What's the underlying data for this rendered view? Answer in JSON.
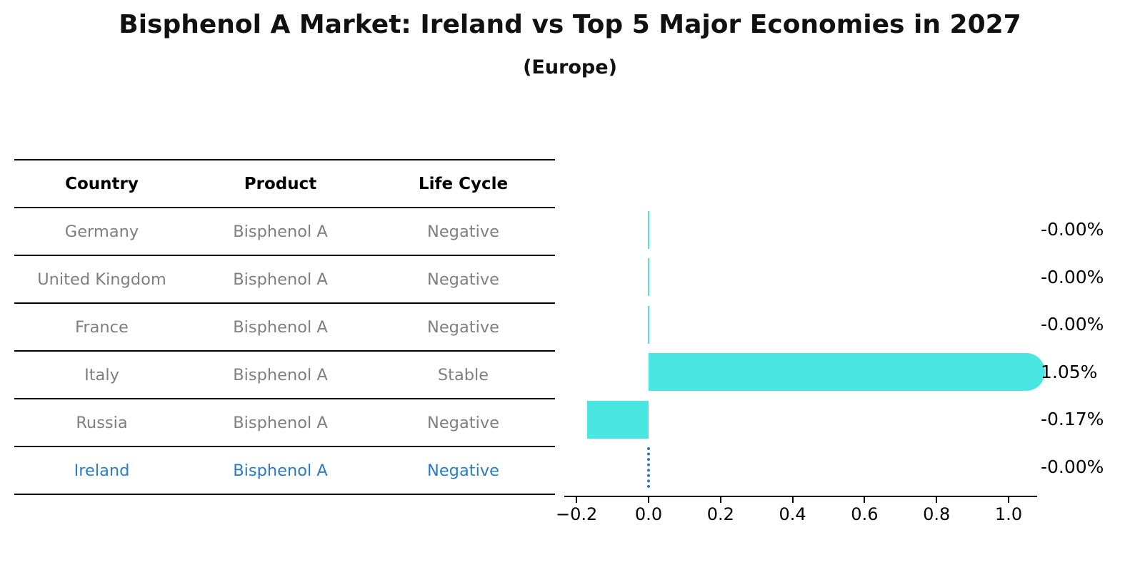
{
  "title": "Bisphenol A Market: Ireland vs Top 5 Major Economies in 2027",
  "subtitle": "(Europe)",
  "table": {
    "headers": [
      "Country",
      "Product",
      "Life Cycle"
    ],
    "rows": [
      {
        "country": "Germany",
        "product": "Bisphenol A",
        "life_cycle": "Negative",
        "highlight": false
      },
      {
        "country": "United Kingdom",
        "product": "Bisphenol A",
        "life_cycle": "Negative",
        "highlight": false
      },
      {
        "country": "France",
        "product": "Bisphenol A",
        "life_cycle": "Negative",
        "highlight": false
      },
      {
        "country": "Italy",
        "product": "Bisphenol A",
        "life_cycle": "Stable",
        "highlight": false
      },
      {
        "country": "Russia",
        "product": "Bisphenol A",
        "life_cycle": "Negative",
        "highlight": false
      },
      {
        "country": "Ireland",
        "product": "Bisphenol A",
        "life_cycle": "Negative",
        "highlight": true
      }
    ]
  },
  "chart_data": {
    "type": "bar",
    "orientation": "horizontal",
    "categories": [
      "Germany",
      "United Kingdom",
      "France",
      "Italy",
      "Russia",
      "Ireland"
    ],
    "values": [
      -0.0,
      -0.0,
      -0.0,
      1.05,
      -0.17,
      -0.0
    ],
    "value_labels": [
      "-0.00%",
      "-0.00%",
      "-0.00%",
      "1.05%",
      "-0.17%",
      "-0.00%"
    ],
    "x_ticks": [
      {
        "value": -0.2,
        "label": "−0.2"
      },
      {
        "value": 0.0,
        "label": "0.0"
      },
      {
        "value": 0.2,
        "label": "0.2"
      },
      {
        "value": 0.4,
        "label": "0.4"
      },
      {
        "value": 0.6,
        "label": "0.6"
      },
      {
        "value": 0.8,
        "label": "0.8"
      },
      {
        "value": 1.0,
        "label": "1.0"
      }
    ],
    "xlim": [
      -0.234,
      1.075
    ],
    "grid": false,
    "legend": null,
    "bar_color": "#4ae6e2",
    "highlight_color": "#2a78b8",
    "highlight_index": 5,
    "highlight_style": "dashed-zero"
  },
  "colors": {
    "bar": "#4ae6e2",
    "highlight_blue": "#2c7cc4",
    "table_text_gray": "#7f7f7f",
    "axis_black": "#000000"
  }
}
